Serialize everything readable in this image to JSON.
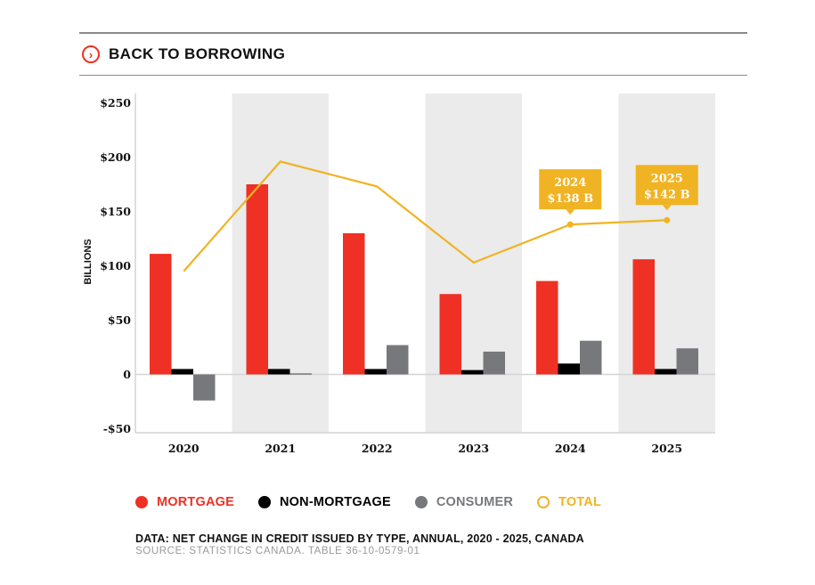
{
  "header": {
    "title": "BACK TO BORROWING",
    "icon": "chevron-right-circle-icon",
    "accent": "#ee3124"
  },
  "colors": {
    "mortgage": "#ee3124",
    "non_mortgage": "#000000",
    "consumer": "#77787b",
    "total": "#f0b323",
    "band": "#ebebeb"
  },
  "legend": [
    {
      "label": "MORTGAGE",
      "key": "mortgage",
      "style": "filled"
    },
    {
      "label": "NON-MORTGAGE",
      "key": "non_mortgage",
      "style": "filled"
    },
    {
      "label": "CONSUMER",
      "key": "consumer",
      "style": "filled"
    },
    {
      "label": "TOTAL",
      "key": "total",
      "style": "ring"
    }
  ],
  "footer": {
    "data_note": "DATA: NET CHANGE IN CREDIT ISSUED BY TYPE, ANNUAL, 2020 - 2025, CANADA",
    "source": "SOURCE: STATISTICS CANADA. TABLE 36-10-0579-01"
  },
  "chart_data": {
    "type": "bar",
    "title": "BACK TO BORROWING",
    "xlabel": "",
    "ylabel": "BILLIONS",
    "categories": [
      "2020",
      "2021",
      "2022",
      "2023",
      "2024",
      "2025"
    ],
    "ylim": [
      -50,
      250
    ],
    "yticks": [
      -50,
      0,
      50,
      100,
      150,
      200,
      250
    ],
    "ytick_labels": [
      "-$50",
      "0",
      "$50",
      "$100",
      "$150",
      "$200",
      "$250"
    ],
    "grid": false,
    "alternating_bands": [
      "2021",
      "2023",
      "2025"
    ],
    "legend_position": "bottom",
    "series": [
      {
        "name": "MORTGAGE",
        "type": "bar",
        "values": [
          111,
          175,
          130,
          74,
          86,
          106
        ]
      },
      {
        "name": "NON-MORTGAGE",
        "type": "bar",
        "values": [
          5,
          5,
          5,
          4,
          10,
          5
        ]
      },
      {
        "name": "CONSUMER",
        "type": "bar",
        "values": [
          -24,
          1,
          27,
          21,
          31,
          24
        ]
      },
      {
        "name": "TOTAL",
        "type": "line",
        "values": [
          95,
          196,
          173,
          103,
          138,
          142
        ]
      }
    ],
    "annotations": [
      {
        "category": "2024",
        "line1": "2024",
        "line2": "$138 B",
        "value": 138
      },
      {
        "category": "2025",
        "line1": "2025",
        "line2": "$142 B",
        "value": 142
      }
    ]
  }
}
